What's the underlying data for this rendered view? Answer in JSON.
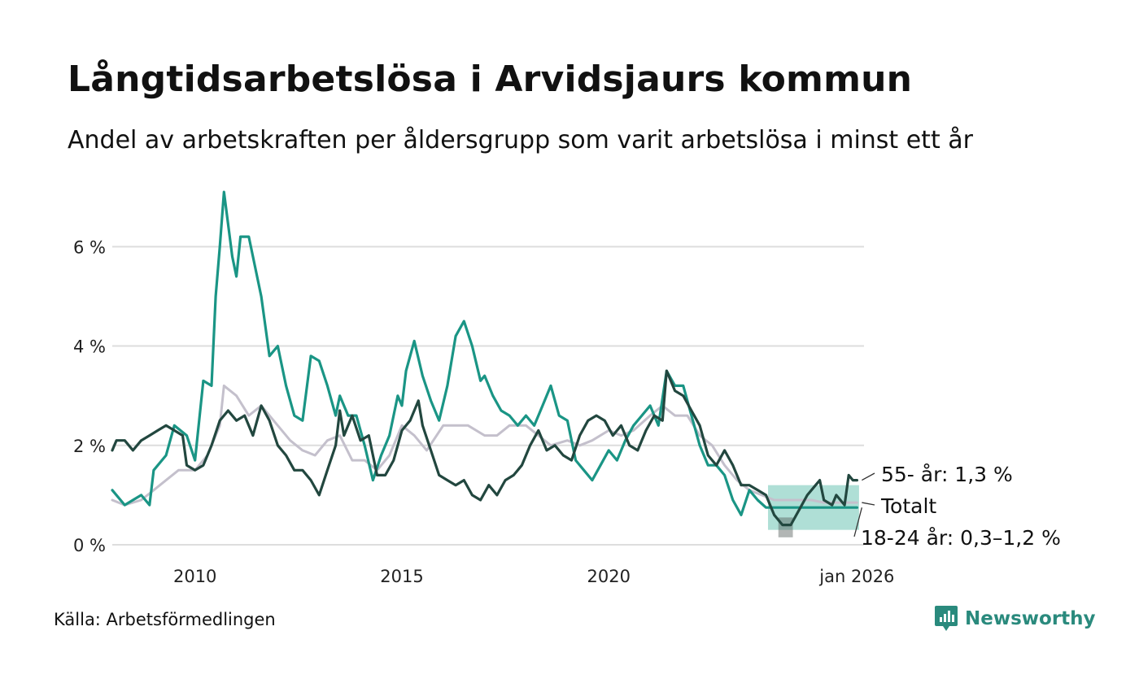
{
  "title": "Långtidsarbetslösa i Arvidsjaurs kommun",
  "subtitle": "Andel av arbetskraften per åldersgrupp som varit arbetslösa i minst ett år",
  "source": "Källa: Arbetsförmedlingen",
  "brand": "Newsworthy",
  "colors": {
    "age_18_24": "#1a9585",
    "age_55_plus": "#22473f",
    "total": "#c4c0cc",
    "band": "#6ec5b5",
    "grid": "#dddddd",
    "brand": "#2a8a7d"
  },
  "chart_data": {
    "type": "line",
    "title": "Långtidsarbetslösa i Arvidsjaurs kommun",
    "xlabel": "",
    "ylabel": "",
    "xlim": [
      2008.0,
      2026.17
    ],
    "ylim": [
      0,
      7.2
    ],
    "y_ticks": [
      {
        "value": 0,
        "label": "0 %"
      },
      {
        "value": 2,
        "label": "2 %"
      },
      {
        "value": 4,
        "label": "4 %"
      },
      {
        "value": 6,
        "label": "6 %"
      }
    ],
    "x_ticks": [
      {
        "value": 2010,
        "label": "2010"
      },
      {
        "value": 2015,
        "label": "2015"
      },
      {
        "value": 2020,
        "label": "2020"
      },
      {
        "value": 2026,
        "label": "jan 2026"
      }
    ],
    "gridlines": true,
    "series": [
      {
        "name": "Totalt",
        "key": "total",
        "end_label": "Totalt",
        "points": [
          [
            2008.0,
            0.9
          ],
          [
            2008.3,
            0.8
          ],
          [
            2008.7,
            0.9
          ],
          [
            2009.0,
            1.1
          ],
          [
            2009.3,
            1.3
          ],
          [
            2009.6,
            1.5
          ],
          [
            2010.0,
            1.5
          ],
          [
            2010.3,
            1.8
          ],
          [
            2010.6,
            2.4
          ],
          [
            2010.7,
            3.2
          ],
          [
            2011.0,
            3.0
          ],
          [
            2011.3,
            2.6
          ],
          [
            2011.6,
            2.8
          ],
          [
            2012.0,
            2.4
          ],
          [
            2012.3,
            2.1
          ],
          [
            2012.6,
            1.9
          ],
          [
            2012.9,
            1.8
          ],
          [
            2013.2,
            2.1
          ],
          [
            2013.5,
            2.2
          ],
          [
            2013.8,
            1.7
          ],
          [
            2014.1,
            1.7
          ],
          [
            2014.4,
            1.5
          ],
          [
            2014.7,
            1.8
          ],
          [
            2015.0,
            2.4
          ],
          [
            2015.3,
            2.2
          ],
          [
            2015.6,
            1.9
          ],
          [
            2016.0,
            2.4
          ],
          [
            2016.3,
            2.4
          ],
          [
            2016.6,
            2.4
          ],
          [
            2017.0,
            2.2
          ],
          [
            2017.3,
            2.2
          ],
          [
            2017.6,
            2.4
          ],
          [
            2018.0,
            2.4
          ],
          [
            2018.3,
            2.2
          ],
          [
            2018.6,
            2.0
          ],
          [
            2019.0,
            2.1
          ],
          [
            2019.3,
            2.0
          ],
          [
            2019.6,
            2.1
          ],
          [
            2020.0,
            2.3
          ],
          [
            2020.3,
            2.2
          ],
          [
            2020.6,
            2.3
          ],
          [
            2021.0,
            2.6
          ],
          [
            2021.3,
            2.8
          ],
          [
            2021.6,
            2.6
          ],
          [
            2021.9,
            2.6
          ],
          [
            2022.2,
            2.2
          ],
          [
            2022.5,
            2.0
          ],
          [
            2022.8,
            1.6
          ],
          [
            2023.1,
            1.3
          ],
          [
            2023.4,
            1.1
          ],
          [
            2023.7,
            1.0
          ],
          [
            2024.0,
            0.9
          ],
          [
            2024.3,
            0.9
          ],
          [
            2024.6,
            0.9
          ],
          [
            2024.9,
            0.9
          ],
          [
            2025.2,
            0.85
          ],
          [
            2025.5,
            0.85
          ],
          [
            2025.8,
            0.85
          ],
          [
            2026.0,
            0.85
          ]
        ]
      },
      {
        "name": "18-24 år",
        "key": "age_18_24",
        "end_label": "18-24 år: 0,3–1,2 %",
        "points": [
          [
            2008.0,
            1.1
          ],
          [
            2008.3,
            0.8
          ],
          [
            2008.5,
            0.9
          ],
          [
            2008.7,
            1.0
          ],
          [
            2008.9,
            0.8
          ],
          [
            2009.0,
            1.5
          ],
          [
            2009.3,
            1.8
          ],
          [
            2009.5,
            2.4
          ],
          [
            2009.8,
            2.2
          ],
          [
            2010.0,
            1.7
          ],
          [
            2010.2,
            3.3
          ],
          [
            2010.4,
            3.2
          ],
          [
            2010.5,
            5.0
          ],
          [
            2010.6,
            6.0
          ],
          [
            2010.7,
            7.1
          ],
          [
            2010.9,
            5.8
          ],
          [
            2011.0,
            5.4
          ],
          [
            2011.1,
            6.2
          ],
          [
            2011.3,
            6.2
          ],
          [
            2011.4,
            5.8
          ],
          [
            2011.6,
            5.0
          ],
          [
            2011.8,
            3.8
          ],
          [
            2012.0,
            4.0
          ],
          [
            2012.2,
            3.2
          ],
          [
            2012.4,
            2.6
          ],
          [
            2012.6,
            2.5
          ],
          [
            2012.8,
            3.8
          ],
          [
            2013.0,
            3.7
          ],
          [
            2013.2,
            3.2
          ],
          [
            2013.4,
            2.6
          ],
          [
            2013.5,
            3.0
          ],
          [
            2013.7,
            2.6
          ],
          [
            2013.9,
            2.6
          ],
          [
            2014.1,
            2.0
          ],
          [
            2014.3,
            1.3
          ],
          [
            2014.5,
            1.8
          ],
          [
            2014.7,
            2.2
          ],
          [
            2014.9,
            3.0
          ],
          [
            2015.0,
            2.8
          ],
          [
            2015.1,
            3.5
          ],
          [
            2015.3,
            4.1
          ],
          [
            2015.5,
            3.4
          ],
          [
            2015.7,
            2.9
          ],
          [
            2015.9,
            2.5
          ],
          [
            2016.1,
            3.2
          ],
          [
            2016.3,
            4.2
          ],
          [
            2016.5,
            4.5
          ],
          [
            2016.7,
            4.0
          ],
          [
            2016.9,
            3.3
          ],
          [
            2017.0,
            3.4
          ],
          [
            2017.2,
            3.0
          ],
          [
            2017.4,
            2.7
          ],
          [
            2017.6,
            2.6
          ],
          [
            2017.8,
            2.4
          ],
          [
            2018.0,
            2.6
          ],
          [
            2018.2,
            2.4
          ],
          [
            2018.4,
            2.8
          ],
          [
            2018.6,
            3.2
          ],
          [
            2018.8,
            2.6
          ],
          [
            2019.0,
            2.5
          ],
          [
            2019.2,
            1.7
          ],
          [
            2019.4,
            1.5
          ],
          [
            2019.6,
            1.3
          ],
          [
            2019.8,
            1.6
          ],
          [
            2020.0,
            1.9
          ],
          [
            2020.2,
            1.7
          ],
          [
            2020.4,
            2.1
          ],
          [
            2020.6,
            2.4
          ],
          [
            2020.8,
            2.6
          ],
          [
            2021.0,
            2.8
          ],
          [
            2021.2,
            2.4
          ],
          [
            2021.4,
            3.5
          ],
          [
            2021.6,
            3.2
          ],
          [
            2021.8,
            3.2
          ],
          [
            2022.0,
            2.6
          ],
          [
            2022.2,
            2.0
          ],
          [
            2022.4,
            1.6
          ],
          [
            2022.6,
            1.6
          ],
          [
            2022.8,
            1.4
          ],
          [
            2023.0,
            0.9
          ],
          [
            2023.2,
            0.6
          ],
          [
            2023.4,
            1.1
          ],
          [
            2023.6,
            0.9
          ],
          [
            2023.8,
            0.75
          ],
          [
            2024.2,
            0.75
          ],
          [
            2024.6,
            0.75
          ],
          [
            2025.0,
            0.75
          ],
          [
            2025.4,
            0.75
          ],
          [
            2025.8,
            0.75
          ],
          [
            2026.0,
            0.75
          ]
        ]
      },
      {
        "name": "55- år",
        "key": "age_55_plus",
        "end_label": "55- år: 1,3 %",
        "points": [
          [
            2008.0,
            1.9
          ],
          [
            2008.1,
            2.1
          ],
          [
            2008.3,
            2.1
          ],
          [
            2008.5,
            1.9
          ],
          [
            2008.7,
            2.1
          ],
          [
            2008.9,
            2.2
          ],
          [
            2009.1,
            2.3
          ],
          [
            2009.3,
            2.4
          ],
          [
            2009.5,
            2.3
          ],
          [
            2009.7,
            2.2
          ],
          [
            2009.8,
            1.6
          ],
          [
            2010.0,
            1.5
          ],
          [
            2010.2,
            1.6
          ],
          [
            2010.4,
            2.0
          ],
          [
            2010.6,
            2.5
          ],
          [
            2010.8,
            2.7
          ],
          [
            2011.0,
            2.5
          ],
          [
            2011.2,
            2.6
          ],
          [
            2011.4,
            2.2
          ],
          [
            2011.6,
            2.8
          ],
          [
            2011.8,
            2.5
          ],
          [
            2012.0,
            2.0
          ],
          [
            2012.2,
            1.8
          ],
          [
            2012.4,
            1.5
          ],
          [
            2012.6,
            1.5
          ],
          [
            2012.8,
            1.3
          ],
          [
            2013.0,
            1.0
          ],
          [
            2013.2,
            1.5
          ],
          [
            2013.4,
            2.0
          ],
          [
            2013.5,
            2.7
          ],
          [
            2013.6,
            2.2
          ],
          [
            2013.8,
            2.6
          ],
          [
            2014.0,
            2.1
          ],
          [
            2014.2,
            2.2
          ],
          [
            2014.4,
            1.4
          ],
          [
            2014.6,
            1.4
          ],
          [
            2014.8,
            1.7
          ],
          [
            2015.0,
            2.3
          ],
          [
            2015.2,
            2.5
          ],
          [
            2015.4,
            2.9
          ],
          [
            2015.5,
            2.4
          ],
          [
            2015.7,
            1.9
          ],
          [
            2015.9,
            1.4
          ],
          [
            2016.1,
            1.3
          ],
          [
            2016.3,
            1.2
          ],
          [
            2016.5,
            1.3
          ],
          [
            2016.7,
            1.0
          ],
          [
            2016.9,
            0.9
          ],
          [
            2017.1,
            1.2
          ],
          [
            2017.3,
            1.0
          ],
          [
            2017.5,
            1.3
          ],
          [
            2017.7,
            1.4
          ],
          [
            2017.9,
            1.6
          ],
          [
            2018.1,
            2.0
          ],
          [
            2018.3,
            2.3
          ],
          [
            2018.5,
            1.9
          ],
          [
            2018.7,
            2.0
          ],
          [
            2018.9,
            1.8
          ],
          [
            2019.1,
            1.7
          ],
          [
            2019.3,
            2.2
          ],
          [
            2019.5,
            2.5
          ],
          [
            2019.7,
            2.6
          ],
          [
            2019.9,
            2.5
          ],
          [
            2020.1,
            2.2
          ],
          [
            2020.3,
            2.4
          ],
          [
            2020.5,
            2.0
          ],
          [
            2020.7,
            1.9
          ],
          [
            2020.9,
            2.3
          ],
          [
            2021.1,
            2.6
          ],
          [
            2021.3,
            2.5
          ],
          [
            2021.4,
            3.5
          ],
          [
            2021.6,
            3.1
          ],
          [
            2021.8,
            3.0
          ],
          [
            2022.0,
            2.7
          ],
          [
            2022.2,
            2.4
          ],
          [
            2022.4,
            1.8
          ],
          [
            2022.6,
            1.6
          ],
          [
            2022.8,
            1.9
          ],
          [
            2023.0,
            1.6
          ],
          [
            2023.2,
            1.2
          ],
          [
            2023.4,
            1.2
          ],
          [
            2023.6,
            1.1
          ],
          [
            2023.8,
            1.0
          ],
          [
            2024.0,
            0.6
          ],
          [
            2024.2,
            0.4
          ],
          [
            2024.4,
            0.4
          ],
          [
            2024.6,
            0.7
          ],
          [
            2024.8,
            1.0
          ],
          [
            2025.0,
            1.2
          ],
          [
            2025.1,
            1.3
          ],
          [
            2025.2,
            0.9
          ],
          [
            2025.4,
            0.8
          ],
          [
            2025.5,
            1.0
          ],
          [
            2025.7,
            0.8
          ],
          [
            2025.8,
            1.4
          ],
          [
            2025.9,
            1.3
          ],
          [
            2026.0,
            1.3
          ]
        ]
      }
    ],
    "bands": [
      {
        "series": "18-24 år",
        "x_range": [
          2023.85,
          2026.05
        ],
        "low": 0.3,
        "high": 1.2
      },
      {
        "series": "55- år",
        "x_range": [
          2024.1,
          2024.45
        ],
        "low": 0.15,
        "high": 0.55
      }
    ]
  }
}
